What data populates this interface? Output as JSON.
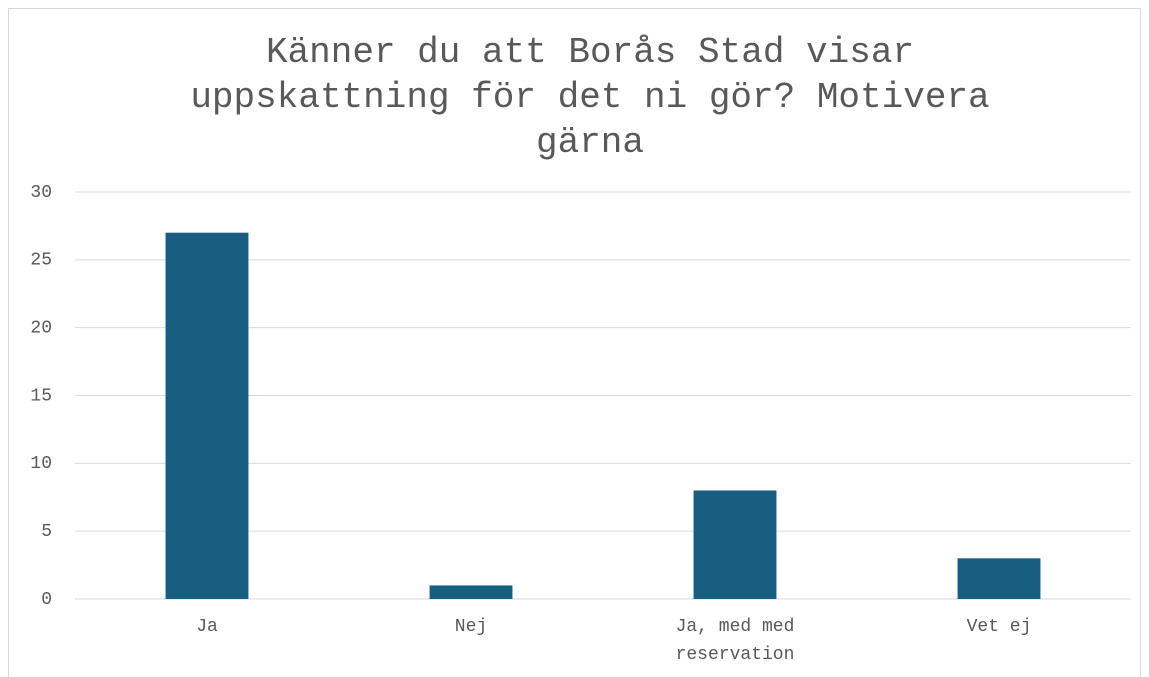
{
  "chart_data": {
    "type": "bar",
    "title": "Känner du att Borås Stad visar uppskattning för det ni gör? Motivera gärna",
    "categories": [
      "Ja",
      "Nej",
      "Ja, med med reservation",
      "Vet ej"
    ],
    "values": [
      27,
      1,
      8,
      3
    ],
    "color": "#175e80",
    "ylim": [
      0,
      30
    ],
    "yticks": [
      0,
      5,
      10,
      15,
      20,
      25,
      30
    ],
    "grid": true
  }
}
